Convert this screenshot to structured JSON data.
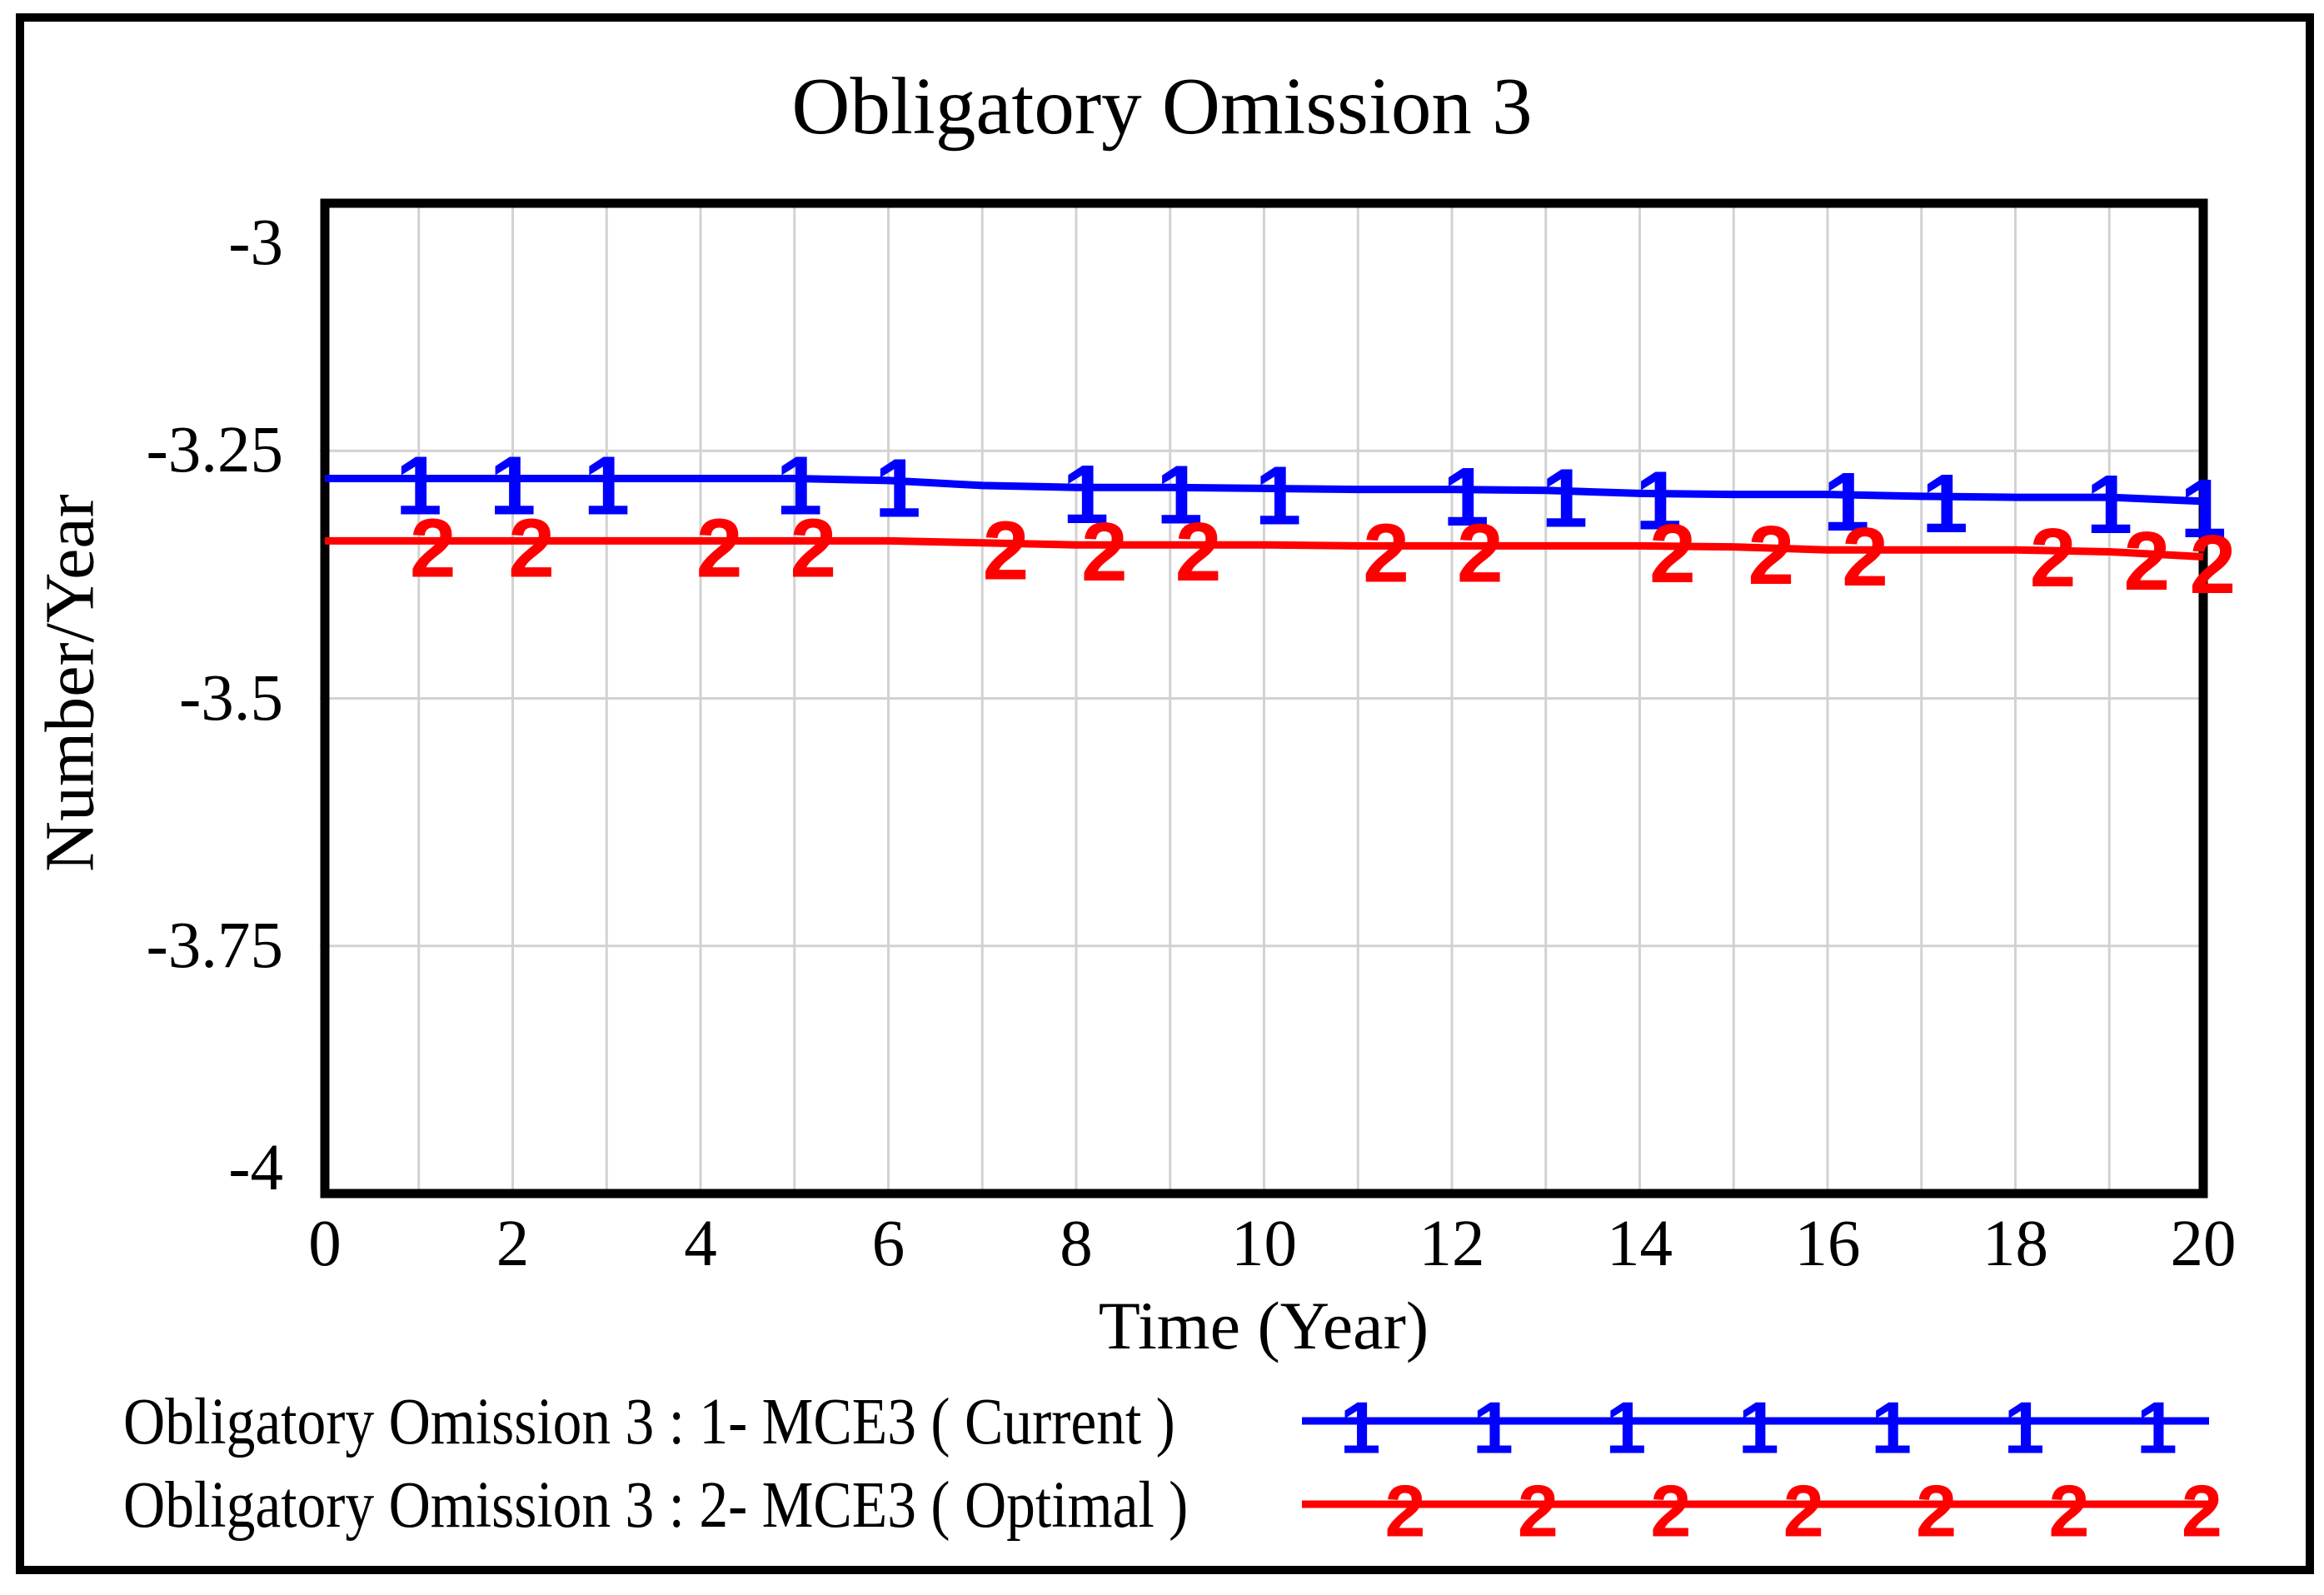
{
  "figure": {
    "background": "#ffffff",
    "border_color": "#000000"
  },
  "chart_data": {
    "type": "line",
    "title": "Obligatory Omission 3",
    "xlabel": "Time (Year)",
    "ylabel": "Number/Year",
    "xlim": [
      0,
      20
    ],
    "ylim": [
      -4,
      -3
    ],
    "grid": true,
    "grid_color": "#d2d2d2",
    "axis_color": "#000000",
    "x_ticks": [
      0,
      2,
      4,
      6,
      8,
      10,
      12,
      14,
      16,
      18,
      20
    ],
    "y_ticks": [
      {
        "value": -3,
        "label": "-3"
      },
      {
        "value": -3.25,
        "label": "-3.25"
      },
      {
        "value": -3.5,
        "label": "-3.5"
      },
      {
        "value": -3.75,
        "label": "-3.75"
      },
      {
        "value": -4,
        "label": "-4"
      }
    ],
    "x": [
      0,
      1,
      2,
      3,
      4,
      5,
      6,
      7,
      8,
      9,
      10,
      11,
      12,
      13,
      14,
      15,
      16,
      17,
      18,
      19,
      20
    ],
    "series": [
      {
        "name": "Obligatory Omission 3 : 1- MCE3 ( Current )",
        "marker": "1",
        "color": "#0000ff",
        "values": [
          -3.278,
          -3.278,
          -3.278,
          -3.278,
          -3.278,
          -3.278,
          -3.28,
          -3.285,
          -3.287,
          -3.287,
          -3.288,
          -3.289,
          -3.289,
          -3.29,
          -3.293,
          -3.294,
          -3.294,
          -3.296,
          -3.297,
          -3.297,
          -3.301
        ],
        "marker_years": [
          1.0,
          2.0,
          3.0,
          5.05,
          6.1,
          8.1,
          9.1,
          10.15,
          12.15,
          13.2,
          14.2,
          16.2,
          17.25,
          19.0,
          20.0
        ]
      },
      {
        "name": "Obligatory Omission 3 : 2- MCE3 ( Optimal )",
        "marker": "2",
        "color": "#ff0000",
        "values": [
          -3.341,
          -3.341,
          -3.341,
          -3.341,
          -3.341,
          -3.341,
          -3.341,
          -3.343,
          -3.345,
          -3.345,
          -3.345,
          -3.346,
          -3.346,
          -3.346,
          -3.346,
          -3.347,
          -3.35,
          -3.35,
          -3.35,
          -3.352,
          -3.357
        ],
        "marker_years": [
          1.15,
          2.2,
          4.2,
          5.2,
          7.25,
          8.3,
          9.3,
          11.3,
          12.3,
          14.35,
          15.4,
          16.4,
          18.4,
          19.4,
          20.1
        ]
      }
    ]
  },
  "legend": {
    "entries": [
      {
        "label": "Obligatory Omission 3 : 1- MCE3 ( Current )",
        "marker": "1",
        "color": "#0000ff"
      },
      {
        "label": "Obligatory Omission 3 : 2- MCE3 ( Optimal )",
        "marker": "2",
        "color": "#ff0000"
      }
    ],
    "sample_marker_count": 7
  }
}
